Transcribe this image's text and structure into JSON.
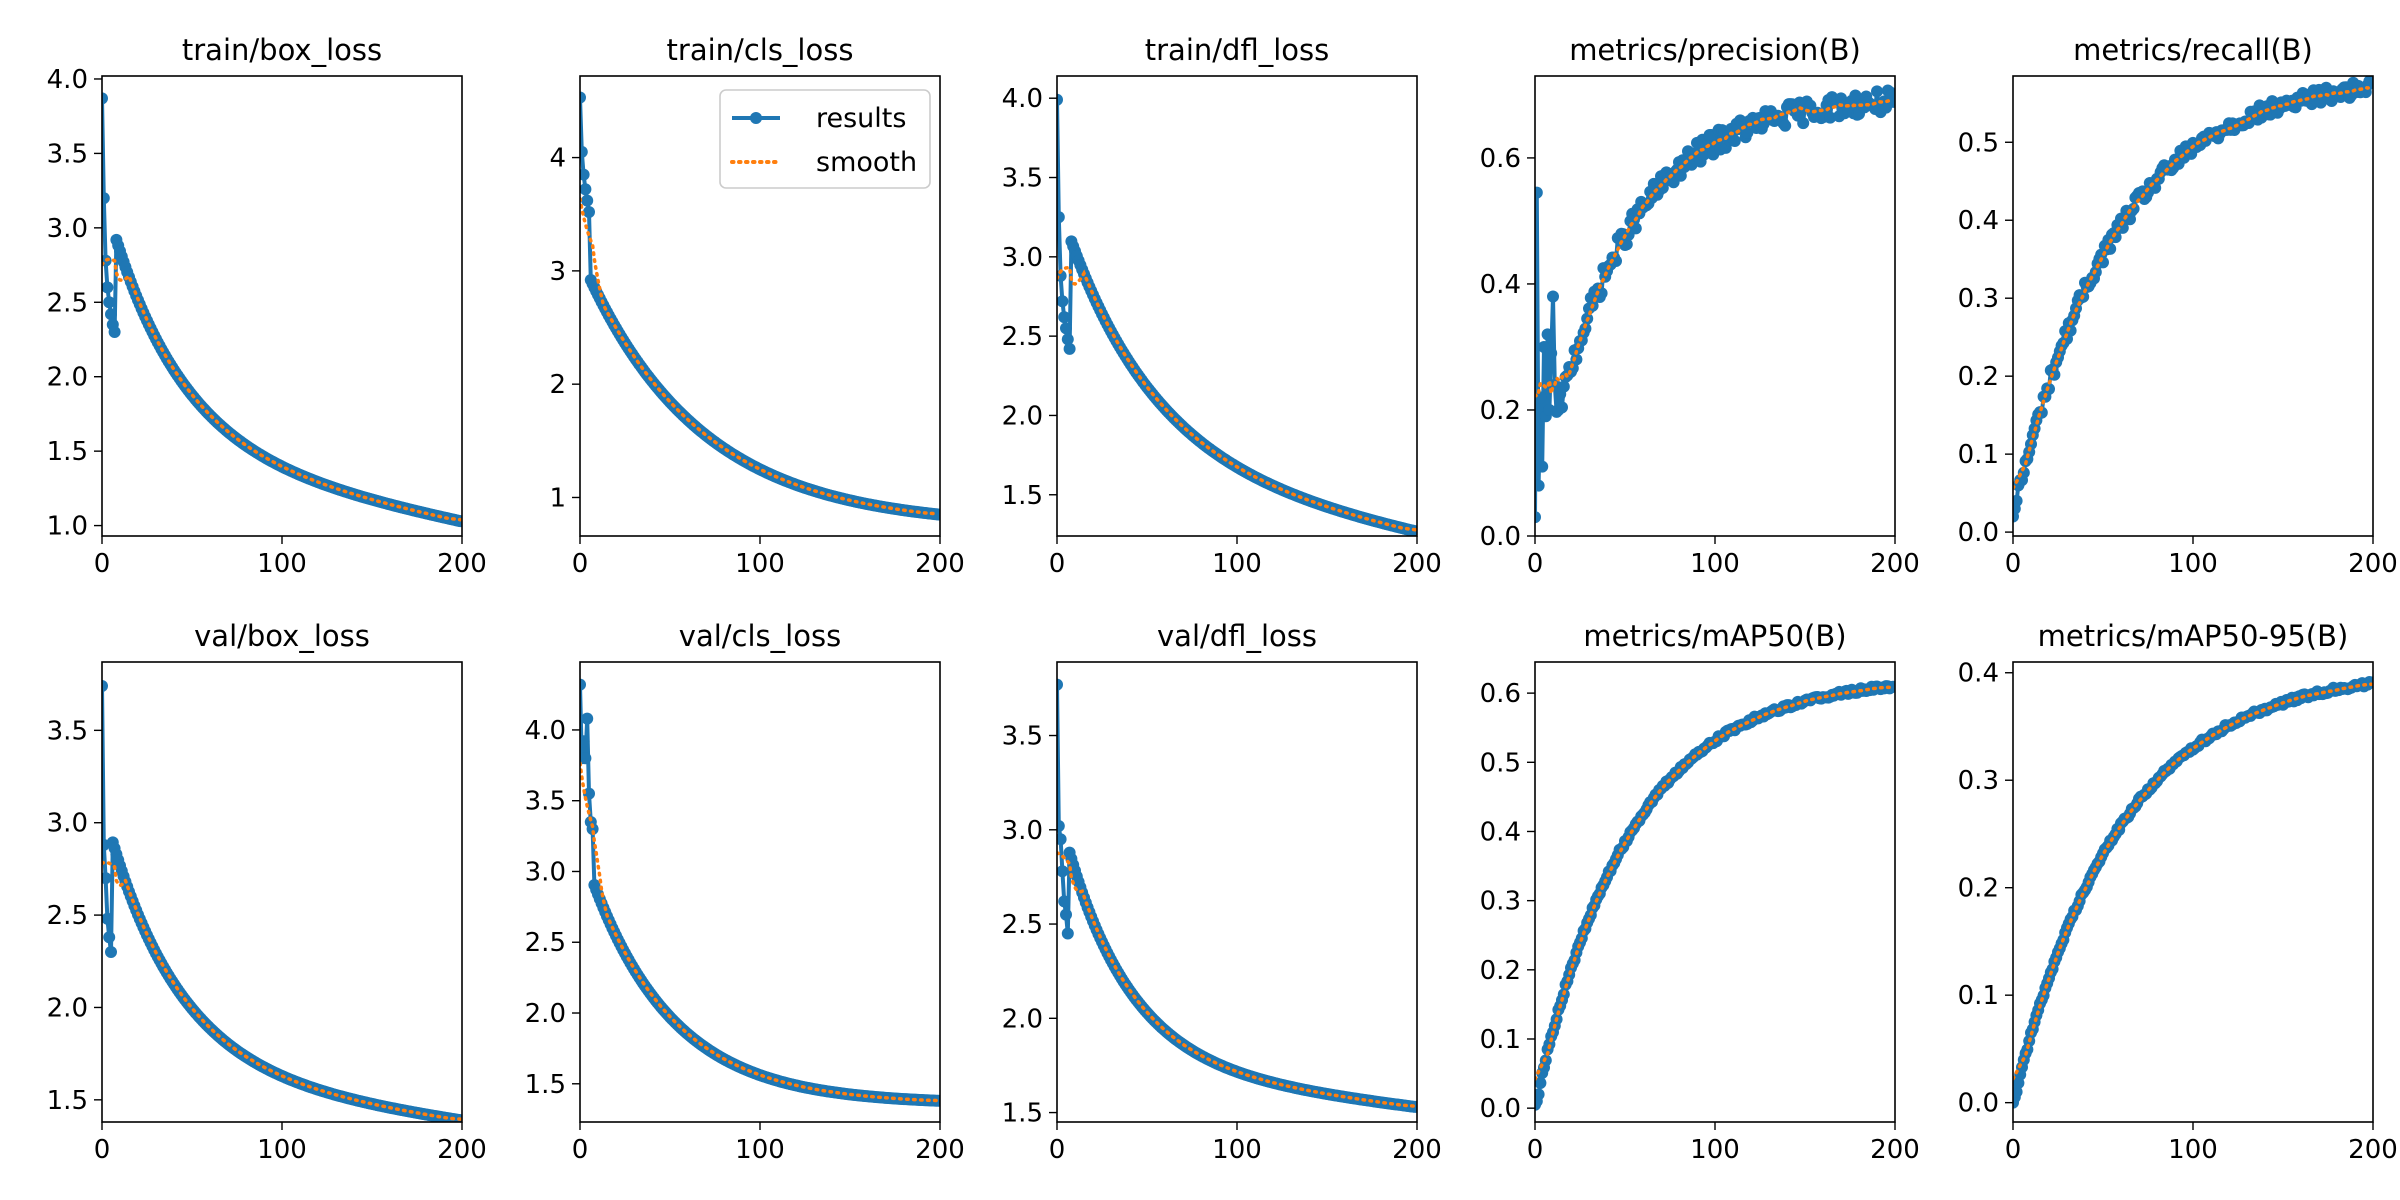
{
  "figure": {
    "background": "#ffffff"
  },
  "style": {
    "results_color": "#1f77b4",
    "smooth_color": "#ff7f0e"
  },
  "legend": {
    "results": "results",
    "smooth": "smooth",
    "placement": "top-right",
    "in_panel": 1
  },
  "chart_data": [
    {
      "type": "line",
      "title": "train/box_loss",
      "xlim": [
        0,
        200
      ],
      "ylim": [
        0.93,
        4.02
      ],
      "xticks": [
        0,
        100,
        200
      ],
      "yticks": [
        1.0,
        1.5,
        2.0,
        2.5,
        3.0,
        3.5,
        4.0
      ],
      "shape": {
        "kind": "decay",
        "start": 3.87,
        "end": 1.03,
        "early": [
          3.87,
          3.2,
          2.78,
          2.6,
          2.5,
          2.42,
          2.35,
          2.3
        ],
        "k": 0.025,
        "p": 0.6,
        "noise": 0.0
      }
    },
    {
      "type": "line",
      "title": "train/cls_loss",
      "xlim": [
        0,
        200
      ],
      "ylim": [
        0.66,
        4.72
      ],
      "xticks": [
        0,
        100,
        200
      ],
      "yticks": [
        1,
        2,
        3,
        4
      ],
      "shape": {
        "kind": "decay",
        "start": 4.53,
        "end": 0.85,
        "early": [
          4.53,
          4.05,
          3.85,
          3.72,
          3.62,
          3.52
        ],
        "k": 0.0155,
        "p": 0.0,
        "noise": 0.0
      }
    },
    {
      "type": "line",
      "title": "train/dfl_loss",
      "xlim": [
        0,
        200
      ],
      "ylim": [
        1.24,
        4.14
      ],
      "xticks": [
        0,
        100,
        200
      ],
      "yticks": [
        1.5,
        2.0,
        2.5,
        3.0,
        3.5,
        4.0
      ],
      "shape": {
        "kind": "decay",
        "start": 3.99,
        "end": 1.27,
        "early": [
          3.99,
          3.25,
          2.88,
          2.72,
          2.62,
          2.55,
          2.48,
          2.42
        ],
        "k": 0.02,
        "p": 0.55,
        "noise": 0.0
      }
    },
    {
      "type": "line",
      "title": "metrics/precision(B)",
      "xlim": [
        0,
        200
      ],
      "ylim": [
        0.0,
        0.73
      ],
      "xticks": [
        0,
        100,
        200
      ],
      "yticks": [
        0.0,
        0.2,
        0.4,
        0.6
      ],
      "shape": {
        "kind": "rise",
        "start": 0.03,
        "end": 0.69,
        "early": [
          0.03,
          0.545,
          0.08,
          0.22,
          0.11,
          0.3,
          0.19,
          0.32,
          0.2,
          0.29,
          0.38,
          0.24
        ],
        "k": 0.022,
        "p": 0.0,
        "noise": 0.018
      }
    },
    {
      "type": "line",
      "title": "metrics/recall(B)",
      "xlim": [
        0,
        200
      ],
      "ylim": [
        -0.005,
        0.585
      ],
      "xticks": [
        0,
        100,
        200
      ],
      "yticks": [
        0.0,
        0.1,
        0.2,
        0.3,
        0.4,
        0.5
      ],
      "shape": {
        "kind": "rise",
        "start": 0.02,
        "end": 0.57,
        "early": [
          0.02,
          0.03,
          0.04,
          0.06
        ],
        "k": 0.018,
        "p": 0.0,
        "noise": 0.01
      }
    },
    {
      "type": "line",
      "title": "val/box_loss",
      "xlim": [
        0,
        200
      ],
      "ylim": [
        1.38,
        3.87
      ],
      "xticks": [
        0,
        100,
        200
      ],
      "yticks": [
        1.5,
        2.0,
        2.5,
        3.0,
        3.5
      ],
      "shape": {
        "kind": "decay",
        "start": 3.74,
        "end": 1.39,
        "early": [
          3.74,
          2.88,
          2.7,
          2.48,
          2.38,
          2.3
        ],
        "k": 0.025,
        "p": 0.4,
        "noise": 0.0
      }
    },
    {
      "type": "line",
      "title": "val/cls_loss",
      "xlim": [
        0,
        200
      ],
      "ylim": [
        1.23,
        4.48
      ],
      "xticks": [
        0,
        100,
        200
      ],
      "yticks": [
        1.5,
        2.0,
        2.5,
        3.0,
        3.5,
        4.0
      ],
      "shape": {
        "kind": "decay",
        "start": 4.32,
        "end": 1.38,
        "early": [
          4.32,
          3.8,
          3.92,
          3.8,
          4.08,
          3.55,
          3.35,
          3.3
        ],
        "k": 0.022,
        "p": 0.0,
        "noise": 0.0
      }
    },
    {
      "type": "line",
      "title": "val/dfl_loss",
      "xlim": [
        0,
        200
      ],
      "ylim": [
        1.45,
        3.89
      ],
      "xticks": [
        0,
        100,
        200
      ],
      "yticks": [
        1.5,
        2.0,
        2.5,
        3.0,
        3.5
      ],
      "shape": {
        "kind": "decay",
        "start": 3.77,
        "end": 1.53,
        "early": [
          3.77,
          3.02,
          2.95,
          2.78,
          2.62,
          2.55,
          2.45
        ],
        "k": 0.028,
        "p": 0.35,
        "noise": 0.0
      }
    },
    {
      "type": "line",
      "title": "metrics/mAP50(B)",
      "xlim": [
        0,
        200
      ],
      "ylim": [
        -0.02,
        0.645
      ],
      "xticks": [
        0,
        100,
        200
      ],
      "yticks": [
        0.0,
        0.1,
        0.2,
        0.3,
        0.4,
        0.5,
        0.6
      ],
      "shape": {
        "kind": "rise",
        "start": 0.005,
        "end": 0.61,
        "early": [
          0.005,
          0.01,
          0.02
        ],
        "k": 0.019,
        "p": 0.0,
        "noise": 0.003
      }
    },
    {
      "type": "line",
      "title": "metrics/mAP50-95(B)",
      "xlim": [
        0,
        200
      ],
      "ylim": [
        -0.018,
        0.41
      ],
      "xticks": [
        0,
        100,
        200
      ],
      "yticks": [
        0.0,
        0.1,
        0.2,
        0.3,
        0.4
      ],
      "shape": {
        "kind": "rise",
        "start": 0.0,
        "end": 0.39,
        "early": [
          0.0,
          0.005,
          0.01
        ],
        "k": 0.017,
        "p": 0.0,
        "noise": 0.002
      }
    }
  ]
}
